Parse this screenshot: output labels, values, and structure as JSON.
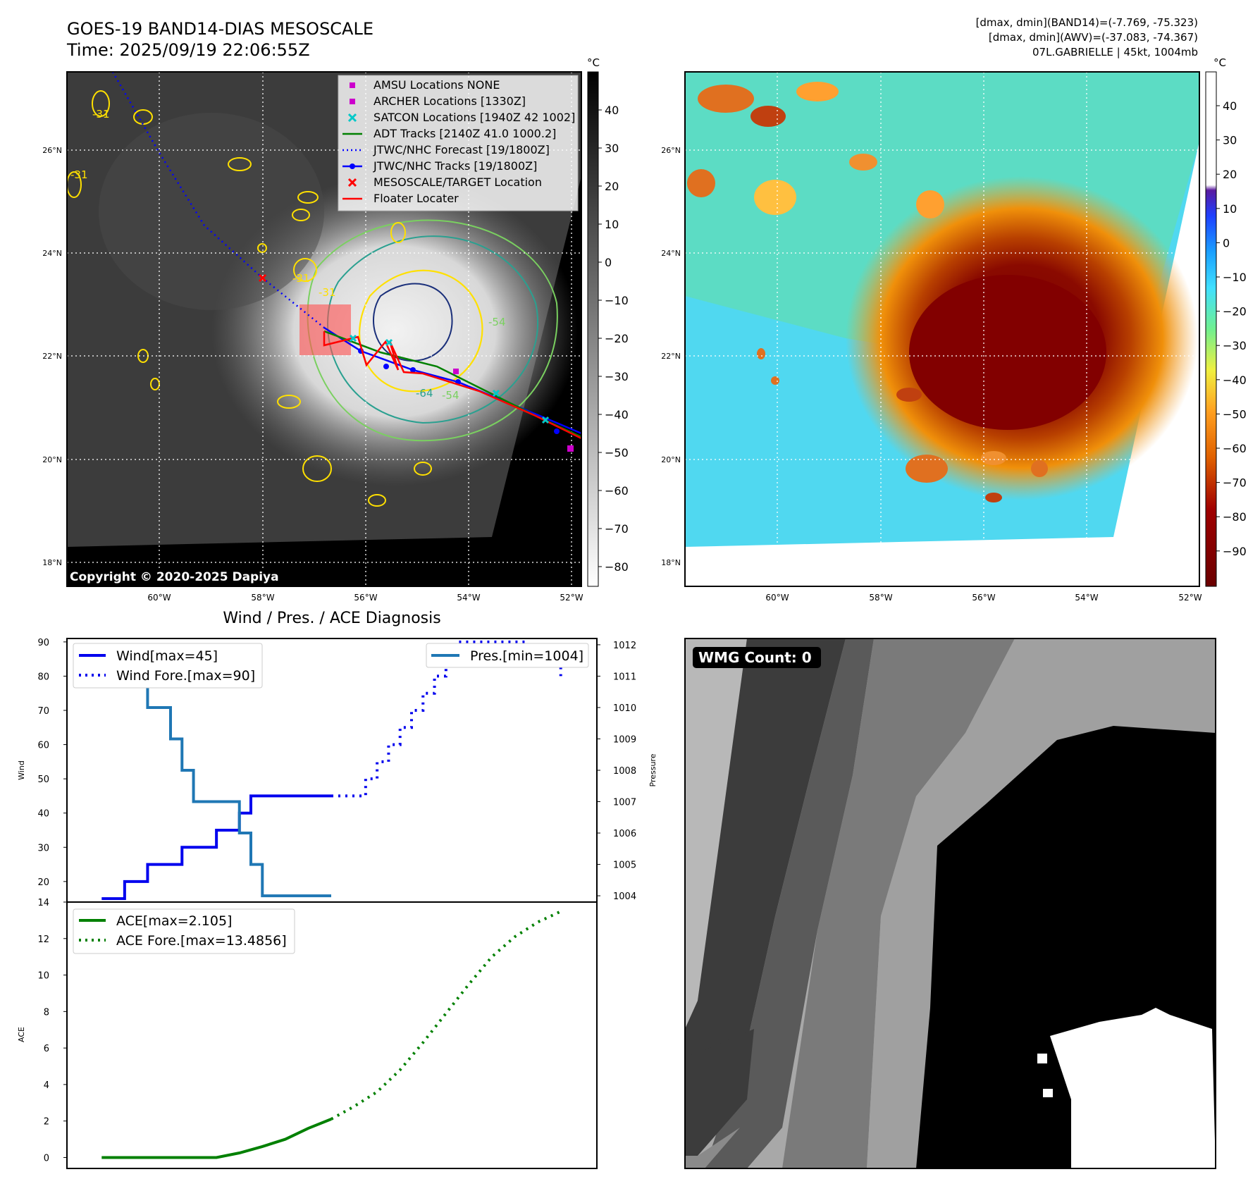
{
  "header": {
    "title": "GOES-19 BAND14-DIAS MESOSCALE",
    "time": "Time: 2025/09/19 22:06:55Z",
    "dmax_band14": "[dmax, dmin](BAND14)=(-7.769, -75.323)",
    "dmax_awv": "[dmax, dmin](AWV)=(-37.083, -74.367)",
    "storm": "07L.GABRIELLE | 45kt, 1004mb"
  },
  "map": {
    "lon_labels": [
      "60°W",
      "58°W",
      "56°W",
      "54°W",
      "52°W"
    ],
    "lat_labels": [
      "26°N",
      "24°N",
      "22°N",
      "20°N",
      "18°N"
    ],
    "copyright": "Copyright © 2020-2025 Dapiya",
    "contour_labels": [
      "-31",
      "-31",
      "-31",
      "-31",
      "-54",
      "-54",
      "-64"
    ],
    "legend": [
      {
        "label": "AMSU Locations NONE",
        "color": "#cc00cc",
        "marker": "square"
      },
      {
        "label": "ARCHER Locations [1330Z]",
        "color": "#cc00cc",
        "marker": "square"
      },
      {
        "label": "SATCON Locations [1940Z 42 1002]",
        "color": "#00c8c8",
        "marker": "x"
      },
      {
        "label": "ADT Tracks [2140Z 41.0 1000.2]",
        "color": "#008000",
        "marker": "line"
      },
      {
        "label": "JTWC/NHC Forecast [19/1800Z]",
        "color": "#0000ff",
        "marker": "dotted"
      },
      {
        "label": "JTWC/NHC Tracks [19/1800Z]",
        "color": "#0000ff",
        "marker": "line-dot"
      },
      {
        "label": "MESOSCALE/TARGET Location",
        "color": "#ff0000",
        "marker": "x"
      },
      {
        "label": "Floater Locater",
        "color": "#ff0000",
        "marker": "line"
      }
    ]
  },
  "colorbar_left": {
    "unit": "°C",
    "ticks": [
      "40",
      "30",
      "20",
      "10",
      "0",
      "−10",
      "−20",
      "−30",
      "−40",
      "−50",
      "−60",
      "−70",
      "−80"
    ]
  },
  "colorbar_right": {
    "unit": "°C",
    "ticks": [
      "40",
      "30",
      "20",
      "10",
      "0",
      "−10",
      "−20",
      "−30",
      "−40",
      "−50",
      "−60",
      "−70",
      "−80",
      "−90"
    ]
  },
  "diagnosis": {
    "title": "Wind / Pres. / ACE Diagnosis",
    "wind_ylabel": "Wind",
    "pres_ylabel": "Pressure",
    "ace_ylabel": "ACE",
    "legend_wind": "Wind[max=45]",
    "legend_wind_fore": "Wind Fore.[max=90]",
    "legend_pres": "Pres.[min=1004]",
    "legend_ace": "ACE[max=2.105]",
    "legend_ace_fore": "ACE Fore.[max=13.4856]"
  },
  "wmg": {
    "label": "WMG Count: 0"
  },
  "chart_data": [
    {
      "type": "line",
      "title": "Wind / Pres. / ACE Diagnosis",
      "ylabel": "Wind",
      "y2label": "Pressure",
      "ylim": [
        14,
        91
      ],
      "y2lim": [
        1003.8,
        1012.2
      ],
      "yticks": [
        20,
        30,
        40,
        50,
        60,
        70,
        80,
        90
      ],
      "y2ticks": [
        1004,
        1005,
        1006,
        1007,
        1008,
        1009,
        1010,
        1011,
        1012
      ],
      "series": [
        {
          "name": "Wind[max=45]",
          "style": "solid",
          "color": "#0000ee",
          "x": [
            0,
            1,
            2,
            3,
            4,
            5,
            6,
            7,
            8,
            9,
            10,
            11,
            12,
            13,
            14,
            15,
            16,
            17,
            18,
            19,
            20
          ],
          "values": [
            15,
            15,
            20,
            20,
            25,
            25,
            25,
            30,
            30,
            30,
            35,
            35,
            40,
            45,
            45,
            45,
            45,
            45,
            45,
            45,
            45
          ]
        },
        {
          "name": "Wind Fore.[max=90]",
          "style": "dotted",
          "color": "#0000ee",
          "x": [
            20,
            21,
            22,
            23,
            24,
            25,
            26,
            27,
            28,
            29,
            30,
            31,
            32,
            33,
            34,
            35,
            36,
            37,
            38,
            39,
            40
          ],
          "values": [
            45,
            45,
            45,
            50,
            55,
            60,
            65,
            70,
            75,
            80,
            85,
            90,
            90,
            90,
            90,
            90,
            90,
            85,
            85,
            85,
            80
          ]
        },
        {
          "name": "Pres.[min=1004]",
          "axis": "right",
          "style": "solid",
          "color": "#1f77b4",
          "x": [
            0,
            1,
            2,
            3,
            4,
            5,
            6,
            7,
            8,
            9,
            10,
            11,
            12,
            13,
            14,
            15,
            16,
            17,
            18,
            19,
            20
          ],
          "values": [
            1012,
            1012,
            1011,
            1011,
            1010,
            1010,
            1009,
            1008,
            1007,
            1007,
            1007,
            1007,
            1006,
            1005,
            1004,
            1004,
            1004,
            1004,
            1004,
            1004,
            1004
          ]
        }
      ]
    },
    {
      "type": "line",
      "ylabel": "ACE",
      "ylim": [
        -0.6,
        14
      ],
      "yticks": [
        0,
        2,
        4,
        6,
        8,
        10,
        12,
        14
      ],
      "series": [
        {
          "name": "ACE[max=2.105]",
          "style": "solid",
          "color": "#008000",
          "x": [
            0,
            2,
            4,
            6,
            8,
            10,
            12,
            14,
            16,
            18,
            20
          ],
          "values": [
            0,
            0,
            0,
            0,
            0,
            0,
            0.25,
            0.6,
            1.0,
            1.6,
            2.105
          ]
        },
        {
          "name": "ACE Fore.[max=13.4856]",
          "style": "dotted",
          "color": "#008000",
          "x": [
            20,
            22,
            24,
            26,
            28,
            30,
            32,
            34,
            36,
            38,
            40
          ],
          "values": [
            2.105,
            2.8,
            3.6,
            4.8,
            6.3,
            7.9,
            9.5,
            11.0,
            12.1,
            12.9,
            13.4856
          ]
        }
      ]
    }
  ]
}
